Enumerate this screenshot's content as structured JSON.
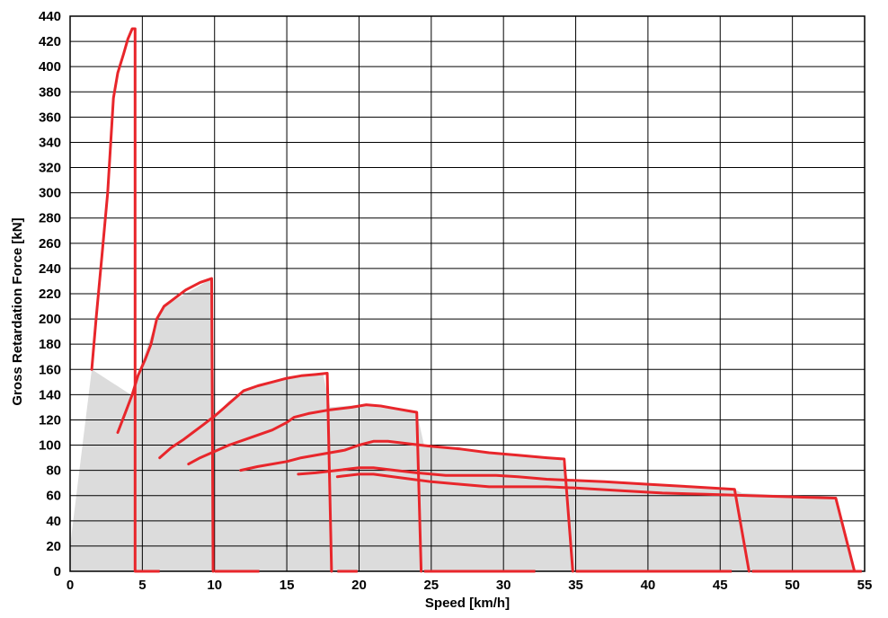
{
  "chart_data": {
    "type": "area",
    "title": "",
    "xlabel": "Speed [km/h]",
    "ylabel": "Gross Retardation Force [kN]",
    "xlim": [
      0,
      55
    ],
    "ylim": [
      0,
      440
    ],
    "x_ticks": [
      0,
      5,
      10,
      15,
      20,
      25,
      30,
      35,
      40,
      45,
      50,
      55
    ],
    "y_ticks": [
      0,
      20,
      40,
      60,
      80,
      100,
      120,
      140,
      160,
      180,
      200,
      220,
      240,
      260,
      280,
      300,
      320,
      340,
      360,
      380,
      400,
      420,
      440
    ],
    "x_grid_every": 5,
    "y_grid_every": 20,
    "grid": true,
    "series_color": "#e8262b",
    "fill_color": "#dcdcdc",
    "envelope": [
      [
        0,
        20
      ],
      [
        1.5,
        160
      ],
      [
        4.2,
        140
      ],
      [
        6,
        200
      ],
      [
        6.5,
        210
      ],
      [
        8,
        220
      ],
      [
        9.8,
        232
      ],
      [
        10,
        123
      ],
      [
        11,
        135
      ],
      [
        12,
        143
      ],
      [
        14,
        150
      ],
      [
        17.5,
        157
      ],
      [
        18,
        130
      ],
      [
        20,
        132
      ],
      [
        24,
        126
      ],
      [
        24.5,
        100
      ],
      [
        27,
        97
      ],
      [
        30,
        93
      ],
      [
        34,
        89
      ],
      [
        34.5,
        72
      ],
      [
        40,
        69
      ],
      [
        46,
        65
      ],
      [
        46.5,
        62
      ],
      [
        50,
        60
      ],
      [
        53,
        58
      ],
      [
        54.3,
        0
      ],
      [
        0,
        0
      ]
    ],
    "series": [
      {
        "points": [
          [
            1.5,
            160
          ],
          [
            1.8,
            200
          ],
          [
            2.2,
            250
          ],
          [
            2.6,
            300
          ],
          [
            3.0,
            375
          ],
          [
            3.3,
            395
          ],
          [
            3.7,
            410
          ],
          [
            4.0,
            422
          ],
          [
            4.3,
            430
          ],
          [
            4.5,
            430
          ],
          [
            4.5,
            0
          ]
        ]
      },
      {
        "points": [
          [
            3.3,
            110
          ],
          [
            3.8,
            125
          ],
          [
            4.3,
            140
          ],
          [
            4.7,
            155
          ],
          [
            5.2,
            168
          ],
          [
            5.6,
            180
          ],
          [
            6.0,
            200
          ],
          [
            6.5,
            210
          ],
          [
            7.2,
            216
          ],
          [
            8.0,
            223
          ],
          [
            9.0,
            229
          ],
          [
            9.8,
            232
          ],
          [
            9.9,
            0
          ]
        ]
      },
      {
        "points": [
          [
            6.2,
            90
          ],
          [
            7.0,
            98
          ],
          [
            7.8,
            104
          ],
          [
            8.5,
            110
          ],
          [
            9.2,
            116
          ],
          [
            10.0,
            123
          ],
          [
            10.5,
            128
          ],
          [
            11.2,
            135
          ],
          [
            12.0,
            143
          ],
          [
            13.0,
            147
          ],
          [
            14.0,
            150
          ],
          [
            15.0,
            153
          ],
          [
            16.0,
            155
          ],
          [
            17.0,
            156
          ],
          [
            17.8,
            157
          ],
          [
            18.1,
            0
          ]
        ]
      },
      {
        "points": [
          [
            8.2,
            85
          ],
          [
            9.0,
            90
          ],
          [
            10.0,
            95
          ],
          [
            11.0,
            100
          ],
          [
            12.0,
            104
          ],
          [
            13.0,
            108
          ],
          [
            14.0,
            112
          ],
          [
            15.0,
            118
          ],
          [
            15.5,
            122
          ],
          [
            16.5,
            125
          ],
          [
            18.0,
            128
          ],
          [
            19.5,
            130
          ],
          [
            20.5,
            132
          ],
          [
            21.5,
            131
          ],
          [
            22.5,
            129
          ],
          [
            23.5,
            127
          ],
          [
            24.0,
            126
          ],
          [
            24.3,
            0
          ]
        ]
      },
      {
        "points": [
          [
            11.8,
            80
          ],
          [
            13.0,
            83
          ],
          [
            15.0,
            87
          ],
          [
            16.0,
            90
          ],
          [
            17.5,
            93
          ],
          [
            19.0,
            96
          ],
          [
            20.0,
            100
          ],
          [
            21.0,
            103
          ],
          [
            22.0,
            103
          ],
          [
            23.5,
            101
          ],
          [
            25.0,
            99
          ],
          [
            27.0,
            97
          ],
          [
            29.0,
            94
          ],
          [
            31.0,
            92
          ],
          [
            33.0,
            90
          ],
          [
            34.2,
            89
          ],
          [
            34.8,
            0
          ]
        ]
      },
      {
        "points": [
          [
            15.8,
            77
          ],
          [
            17.0,
            78
          ],
          [
            18.5,
            80
          ],
          [
            20.0,
            82
          ],
          [
            21.0,
            82
          ],
          [
            22.5,
            80
          ],
          [
            24.0,
            78
          ],
          [
            26.0,
            76
          ],
          [
            28.0,
            76
          ],
          [
            29.5,
            76
          ],
          [
            31.0,
            75
          ],
          [
            33.0,
            73
          ],
          [
            35.0,
            72
          ],
          [
            37.0,
            71
          ],
          [
            40.0,
            69
          ],
          [
            43.0,
            67
          ],
          [
            46.0,
            65
          ],
          [
            47.0,
            0
          ]
        ]
      },
      {
        "points": [
          [
            18.5,
            75
          ],
          [
            20.0,
            77
          ],
          [
            21.0,
            77
          ],
          [
            23.0,
            74
          ],
          [
            25.0,
            71
          ],
          [
            27.0,
            69
          ],
          [
            29.0,
            67
          ],
          [
            31.0,
            67
          ],
          [
            33.0,
            67
          ],
          [
            35.0,
            66
          ],
          [
            38.0,
            64
          ],
          [
            41.0,
            62
          ],
          [
            44.0,
            61
          ],
          [
            47.0,
            60
          ],
          [
            50.0,
            59
          ],
          [
            53.0,
            58
          ],
          [
            54.3,
            0
          ]
        ]
      }
    ],
    "baseline_segments": [
      [
        4.5,
        6.2
      ],
      [
        10,
        13.1
      ],
      [
        18.5,
        19.9
      ],
      [
        24.5,
        32.2
      ],
      [
        35,
        45.8
      ],
      [
        47.2,
        54.8
      ]
    ]
  }
}
